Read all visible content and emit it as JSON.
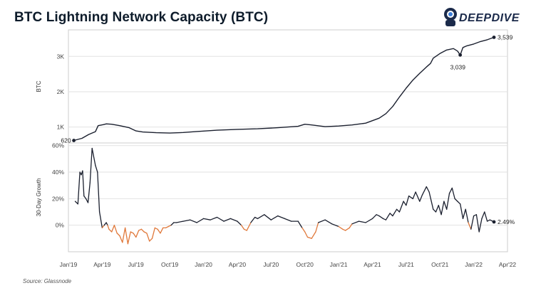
{
  "title": "BTC Lightning Network Capacity (BTC)",
  "brand": {
    "name": "DEEPDIVE"
  },
  "source": "Source: Glassnode",
  "colors": {
    "line": "#1a1f2e",
    "negative": "#e0783a",
    "grid": "#e2e2e2",
    "axis": "#cccccc"
  },
  "x_axis_ticks": [
    "Jan'19",
    "Apr'19",
    "Jul'19",
    "Oct'19",
    "Jan'20",
    "Apr'20",
    "Jul'20",
    "Oct'20",
    "Jan'21",
    "Apr'21",
    "Jul'21",
    "Oct'21",
    "Jan'22",
    "Apr'22"
  ],
  "chart_data": [
    {
      "type": "line",
      "title": "BTC Lightning Network Capacity",
      "ylabel": "BTC",
      "xlabel": "",
      "ylim": [
        550,
        3750
      ],
      "yticks": [
        {
          "v": 1000,
          "label": "1K"
        },
        {
          "v": 2000,
          "label": "2K"
        },
        {
          "v": 3000,
          "label": "3K"
        }
      ],
      "x_range": [
        2019.0,
        2022.25
      ],
      "annotations": [
        {
          "x": 2019.04,
          "y": 620,
          "label": "620"
        },
        {
          "x": 2021.9,
          "y": 3039,
          "label": "3,039"
        },
        {
          "x": 2022.15,
          "y": 3539,
          "label": "3,539"
        }
      ],
      "series": [
        {
          "name": "Capacity",
          "x": [
            2019.04,
            2019.1,
            2019.15,
            2019.2,
            2019.22,
            2019.26,
            2019.28,
            2019.32,
            2019.38,
            2019.45,
            2019.5,
            2019.55,
            2019.65,
            2019.75,
            2019.85,
            2019.95,
            2020.1,
            2020.25,
            2020.4,
            2020.55,
            2020.7,
            2020.75,
            2020.8,
            2020.9,
            2021.0,
            2021.1,
            2021.2,
            2021.3,
            2021.35,
            2021.4,
            2021.45,
            2021.5,
            2021.55,
            2021.6,
            2021.65,
            2021.68,
            2021.7,
            2021.75,
            2021.8,
            2021.85,
            2021.88,
            2021.9,
            2021.92,
            2021.95,
            2022.0,
            2022.05,
            2022.1,
            2022.15
          ],
          "y": [
            620,
            680,
            790,
            870,
            1040,
            1070,
            1090,
            1080,
            1040,
            980,
            890,
            860,
            840,
            830,
            845,
            875,
            910,
            935,
            950,
            980,
            1020,
            1080,
            1060,
            1010,
            1030,
            1060,
            1110,
            1250,
            1380,
            1580,
            1850,
            2100,
            2330,
            2520,
            2700,
            2800,
            2950,
            3080,
            3180,
            3220,
            3150,
            3039,
            3250,
            3300,
            3350,
            3420,
            3470,
            3539
          ]
        }
      ]
    },
    {
      "type": "line",
      "title": "30-Day Growth",
      "ylabel": "30-Day Growth",
      "xlabel": "",
      "ylim": [
        -20,
        62
      ],
      "yticks": [
        {
          "v": 0,
          "label": "0%"
        },
        {
          "v": 20,
          "label": "20%"
        },
        {
          "v": 40,
          "label": "40%"
        },
        {
          "v": 60,
          "label": "60%"
        }
      ],
      "x_range": [
        2019.0,
        2022.25
      ],
      "annotations": [
        {
          "x": 2022.15,
          "y": 2.49,
          "label": "2.49%"
        }
      ],
      "series": [
        {
          "name": "30-Day Growth",
          "x": [
            2019.05,
            2019.07,
            2019.085,
            2019.095,
            2019.105,
            2019.115,
            2019.13,
            2019.145,
            2019.16,
            2019.175,
            2019.2,
            2019.215,
            2019.23,
            2019.25,
            2019.265,
            2019.28,
            2019.29,
            2019.3,
            2019.32,
            2019.34,
            2019.36,
            2019.38,
            2019.4,
            2019.42,
            2019.44,
            2019.46,
            2019.48,
            2019.5,
            2019.52,
            2019.54,
            2019.56,
            2019.58,
            2019.6,
            2019.62,
            2019.64,
            2019.66,
            2019.68,
            2019.7,
            2019.72,
            2019.74,
            2019.76,
            2019.78,
            2019.8,
            2019.85,
            2019.9,
            2019.95,
            2020.0,
            2020.05,
            2020.1,
            2020.15,
            2020.2,
            2020.25,
            2020.28,
            2020.3,
            2020.32,
            2020.35,
            2020.38,
            2020.4,
            2020.45,
            2020.5,
            2020.55,
            2020.6,
            2020.65,
            2020.7,
            2020.73,
            2020.75,
            2020.77,
            2020.8,
            2020.83,
            2020.85,
            2020.9,
            2020.95,
            2021.0,
            2021.03,
            2021.05,
            2021.08,
            2021.1,
            2021.15,
            2021.2,
            2021.25,
            2021.28,
            2021.3,
            2021.33,
            2021.35,
            2021.38,
            2021.4,
            2021.43,
            2021.45,
            2021.48,
            2021.5,
            2021.52,
            2021.55,
            2021.57,
            2021.6,
            2021.62,
            2021.65,
            2021.67,
            2021.7,
            2021.72,
            2021.74,
            2021.76,
            2021.78,
            2021.8,
            2021.82,
            2021.84,
            2021.86,
            2021.88,
            2021.9,
            2021.92,
            2021.94,
            2021.96,
            2021.98,
            2022.0,
            2022.02,
            2022.04,
            2022.06,
            2022.08,
            2022.1,
            2022.12,
            2022.15
          ],
          "y": [
            18,
            16,
            40,
            38,
            41,
            22,
            20,
            17,
            32,
            58,
            45,
            40,
            10,
            -2,
            0,
            2,
            0,
            -3,
            -5,
            0,
            -6,
            -8,
            -13,
            -2,
            -14,
            -5,
            -6,
            -9,
            -4,
            -3,
            -5,
            -6,
            -12,
            -10,
            -2,
            -3,
            -6,
            -2,
            -2,
            -1,
            0,
            2,
            2,
            3,
            4,
            2,
            5,
            4,
            6,
            3,
            5,
            3,
            0,
            -3,
            -4,
            2,
            6,
            5,
            8,
            4,
            7,
            5,
            3,
            3,
            -2,
            -5,
            -9,
            -10,
            -5,
            2,
            4,
            1,
            -1,
            -3,
            -4,
            -2,
            1,
            3,
            2,
            5,
            8,
            7,
            5,
            4,
            9,
            7,
            12,
            10,
            18,
            15,
            22,
            20,
            25,
            18,
            23,
            29,
            25,
            12,
            10,
            15,
            8,
            18,
            12,
            24,
            28,
            20,
            18,
            16,
            5,
            12,
            2,
            -3,
            7,
            8,
            -5,
            5,
            10,
            3,
            4,
            2.49
          ]
        }
      ]
    }
  ]
}
